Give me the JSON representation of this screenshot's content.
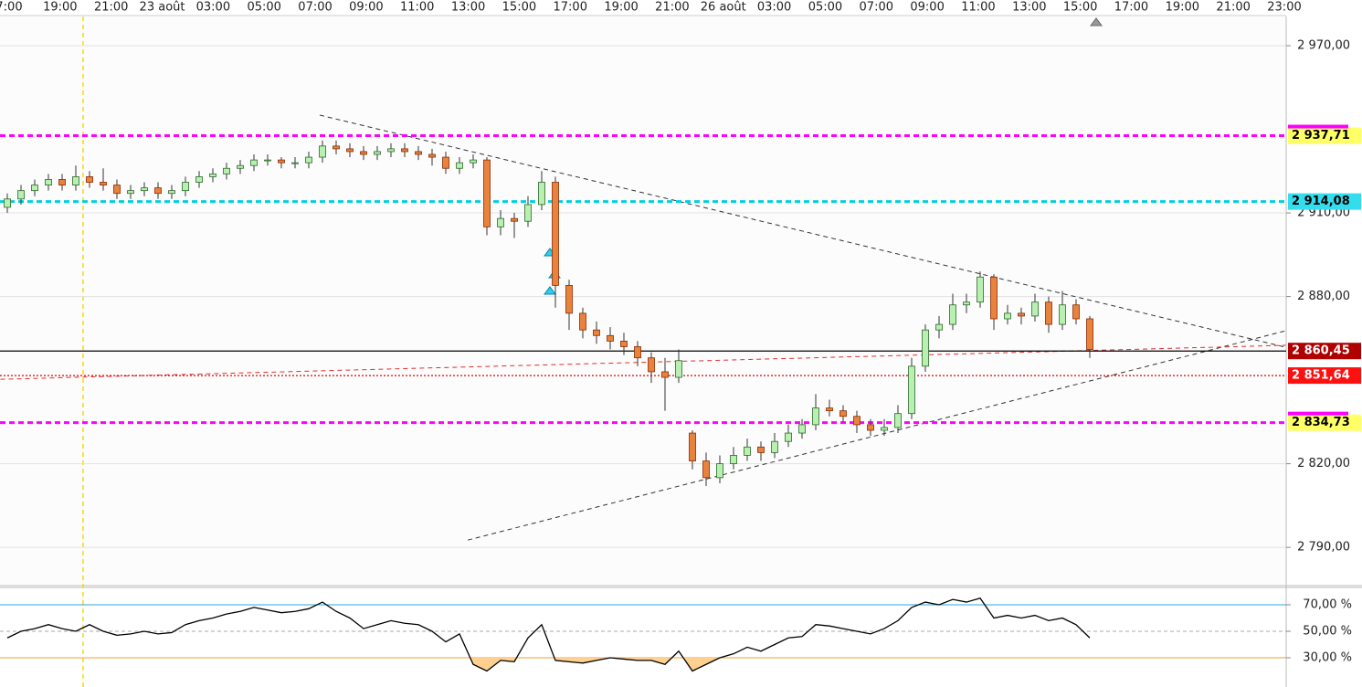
{
  "chart_data": {
    "type": "candlestick",
    "x_labels": [
      "7:00",
      "19:00",
      "21:00",
      "23 août",
      "03:00",
      "05:00",
      "07:00",
      "09:00",
      "11:00",
      "13:00",
      "15:00",
      "17:00",
      "19:00",
      "21:00",
      "26 août",
      "03:00",
      "05:00",
      "07:00",
      "09:00",
      "11:00",
      "13:00",
      "15:00",
      "17:00",
      "19:00",
      "21:00",
      "23:00"
    ],
    "ylim": [
      2776.6,
      2980.5
    ],
    "yticks": [
      {
        "value": 2790,
        "label": "2 790,00"
      },
      {
        "value": 2820,
        "label": "2 820,00"
      },
      {
        "value": 2880,
        "label": "2 880,00"
      },
      {
        "value": 2910,
        "label": "2 910,00"
      },
      {
        "value": 2970,
        "label": "2 970,00"
      }
    ],
    "grid": true,
    "up_color": "#b9efb0",
    "down_color": "#e8823c",
    "candles": [
      [
        2912,
        2917,
        2910,
        2915
      ],
      [
        2915,
        2920,
        2913,
        2918
      ],
      [
        2918,
        2922,
        2916,
        2920
      ],
      [
        2920,
        2924,
        2918,
        2922
      ],
      [
        2922,
        2924,
        2918,
        2920
      ],
      [
        2920,
        2927,
        2918,
        2923
      ],
      [
        2923,
        2925,
        2919,
        2921
      ],
      [
        2921,
        2926,
        2918,
        2920
      ],
      [
        2920,
        2922,
        2915,
        2917
      ],
      [
        2917,
        2920,
        2915,
        2918
      ],
      [
        2918,
        2921,
        2916,
        2919
      ],
      [
        2919,
        2921,
        2915,
        2917
      ],
      [
        2917,
        2920,
        2915,
        2918
      ],
      [
        2918,
        2923,
        2916,
        2921
      ],
      [
        2921,
        2925,
        2919,
        2923
      ],
      [
        2923,
        2926,
        2921,
        2924
      ],
      [
        2924,
        2928,
        2922,
        2926
      ],
      [
        2926,
        2929,
        2924,
        2927
      ],
      [
        2927,
        2931,
        2925,
        2929
      ],
      [
        2929,
        2931,
        2927,
        2929
      ],
      [
        2929,
        2930,
        2926,
        2928
      ],
      [
        2928,
        2930,
        2926,
        2928
      ],
      [
        2928,
        2932,
        2926,
        2930
      ],
      [
        2930,
        2936,
        2928,
        2934
      ],
      [
        2934,
        2936,
        2931,
        2933
      ],
      [
        2933,
        2935,
        2930,
        2932
      ],
      [
        2932,
        2934,
        2929,
        2931
      ],
      [
        2931,
        2934,
        2929,
        2932
      ],
      [
        2932,
        2935,
        2930,
        2933
      ],
      [
        2933,
        2935,
        2930,
        2932
      ],
      [
        2932,
        2934,
        2929,
        2931
      ],
      [
        2931,
        2933,
        2927,
        2930
      ],
      [
        2930,
        2932,
        2924,
        2926
      ],
      [
        2926,
        2930,
        2924,
        2928
      ],
      [
        2928,
        2931,
        2926,
        2929
      ],
      [
        2929,
        2930,
        2902,
        2905
      ],
      [
        2905,
        2911,
        2902,
        2908
      ],
      [
        2908,
        2910,
        2901,
        2907
      ],
      [
        2907,
        2916,
        2905,
        2913
      ],
      [
        2913,
        2925,
        2911,
        2921
      ],
      [
        2921,
        2923,
        2876,
        2884
      ],
      [
        2884,
        2886,
        2868,
        2874
      ],
      [
        2874,
        2876,
        2865,
        2868
      ],
      [
        2868,
        2871,
        2863,
        2866
      ],
      [
        2866,
        2869,
        2861,
        2864
      ],
      [
        2864,
        2867,
        2859,
        2862
      ],
      [
        2862,
        2864,
        2855,
        2858
      ],
      [
        2858,
        2860,
        2849,
        2853
      ],
      [
        2853,
        2858,
        2839,
        2851
      ],
      [
        2851,
        2861,
        2849,
        2857
      ],
      [
        2831,
        2832,
        2818,
        2821
      ],
      [
        2821,
        2824,
        2812,
        2815
      ],
      [
        2815,
        2823,
        2813,
        2820
      ],
      [
        2820,
        2826,
        2818,
        2823
      ],
      [
        2823,
        2829,
        2821,
        2826
      ],
      [
        2826,
        2828,
        2821,
        2824
      ],
      [
        2824,
        2831,
        2822,
        2828
      ],
      [
        2828,
        2834,
        2826,
        2831
      ],
      [
        2831,
        2836,
        2829,
        2834
      ],
      [
        2834,
        2845,
        2832,
        2840
      ],
      [
        2840,
        2843,
        2837,
        2839
      ],
      [
        2839,
        2841,
        2835,
        2837
      ],
      [
        2837,
        2839,
        2831,
        2834
      ],
      [
        2834,
        2836,
        2830,
        2832
      ],
      [
        2832,
        2836,
        2830,
        2833
      ],
      [
        2833,
        2841,
        2831,
        2838
      ],
      [
        2838,
        2858,
        2836,
        2855
      ],
      [
        2855,
        2870,
        2853,
        2868
      ],
      [
        2868,
        2873,
        2865,
        2870
      ],
      [
        2870,
        2881,
        2868,
        2877
      ],
      [
        2877,
        2881,
        2874,
        2878
      ],
      [
        2878,
        2889,
        2876,
        2887
      ],
      [
        2887,
        2888,
        2868,
        2872
      ],
      [
        2872,
        2877,
        2870,
        2874
      ],
      [
        2874,
        2876,
        2870,
        2873
      ],
      [
        2873,
        2881,
        2871,
        2878
      ],
      [
        2878,
        2880,
        2867,
        2870
      ],
      [
        2870,
        2882,
        2868,
        2877
      ],
      [
        2877,
        2879,
        2870,
        2872
      ],
      [
        2872,
        2873,
        2858,
        2861
      ]
    ],
    "levels": [
      {
        "value": 2937.71,
        "label": "2 937,71",
        "color": "#ff00ff",
        "label_bg": "#ffff66",
        "label_color": "#000000",
        "style": "dashed"
      },
      {
        "value": 2914.08,
        "label": "2 914,08",
        "color": "#00d0e0",
        "label_bg": "#33ddee",
        "label_color": "#000000",
        "style": "dashed"
      },
      {
        "value": 2860.45,
        "label": "2 860,45",
        "color": "#000000",
        "label_bg": "#b00000",
        "label_color": "#ffffff",
        "style": "solid"
      },
      {
        "value": 2851.64,
        "label": "2 851,64",
        "color": "#e00000",
        "label_bg": "#ff1010",
        "label_color": "#ffffff",
        "style": "dotted"
      },
      {
        "value": 2834.73,
        "label": "2 834,73",
        "color": "#ff00ff",
        "label_bg": "#ffff66",
        "label_color": "#000000",
        "style": "dashed"
      }
    ],
    "trendlines": [
      {
        "from": [
          22.8,
          2945.1
        ],
        "to": [
          93.3,
          2861.8
        ],
        "color": "#333333"
      },
      {
        "from": [
          33.6,
          2792.6
        ],
        "to": [
          93.3,
          2867.7
        ],
        "color": "#333333"
      },
      {
        "from": [
          -0.5,
          2850.3
        ],
        "to": [
          93.3,
          2862.5
        ],
        "color": "#e03030"
      }
    ],
    "rsi": {
      "ylim": [
        10.7,
        81.7
      ],
      "yticks": [
        {
          "value": 30,
          "label": "30,00 %"
        },
        {
          "value": 50,
          "label": "50,00 %"
        },
        {
          "value": 70,
          "label": "70,00 %"
        }
      ],
      "tick_line_colors": [
        "#f0a030",
        "#aaaaaa",
        "#2aa8d8"
      ],
      "oversold_fill": "#ffd090",
      "values": [
        45,
        50,
        52,
        55,
        52,
        50,
        55,
        50,
        47,
        48,
        50,
        48,
        49,
        55,
        58,
        60,
        63,
        65,
        68,
        66,
        64,
        65,
        67,
        72,
        65,
        60,
        52,
        55,
        58,
        56,
        55,
        50,
        42,
        48,
        25,
        20,
        28,
        27,
        45,
        55,
        28,
        27,
        26,
        28,
        30,
        29,
        28,
        28,
        25,
        35,
        20,
        25,
        30,
        33,
        38,
        35,
        40,
        45,
        46,
        55,
        54,
        52,
        50,
        48,
        52,
        58,
        68,
        72,
        70,
        74,
        72,
        75,
        60,
        62,
        60,
        62,
        58,
        60,
        55,
        45
      ]
    }
  }
}
